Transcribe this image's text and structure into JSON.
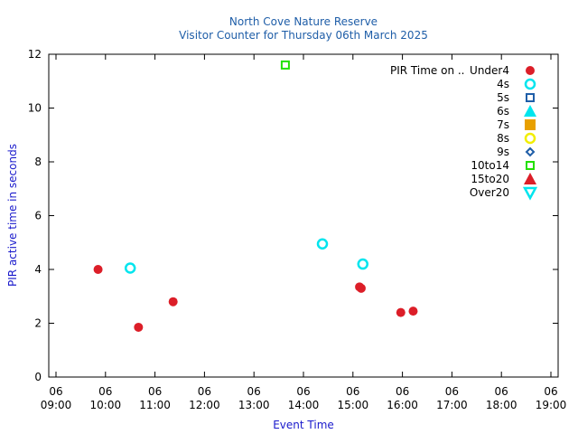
{
  "chart_data": {
    "type": "scatter",
    "title": "North Cove Nature Reserve",
    "subtitle": "Visitor Counter for Thursday 06th March 2025",
    "xlabel": "Event Time",
    "ylabel": "PIR active time in seconds",
    "xlim": [
      "09:00",
      "19:00"
    ],
    "ylim": [
      0,
      12
    ],
    "x_ticks": [
      {
        "day": "06",
        "time": "09:00"
      },
      {
        "day": "06",
        "time": "10:00"
      },
      {
        "day": "06",
        "time": "11:00"
      },
      {
        "day": "06",
        "time": "12:00"
      },
      {
        "day": "06",
        "time": "13:00"
      },
      {
        "day": "06",
        "time": "14:00"
      },
      {
        "day": "06",
        "time": "15:00"
      },
      {
        "day": "06",
        "time": "16:00"
      },
      {
        "day": "06",
        "time": "17:00"
      },
      {
        "day": "06",
        "time": "18:00"
      },
      {
        "day": "06",
        "time": "19:00"
      }
    ],
    "y_ticks": [
      "0",
      "2",
      "4",
      "6",
      "8",
      "10",
      "12"
    ],
    "grid": false,
    "legend_position": "top-right",
    "legend_title": "PIR Time on ..",
    "series": [
      {
        "name": "Under4",
        "marker": "filled-circle",
        "color": "#dc1e28",
        "points": [
          {
            "x": "09:51",
            "y": 4.0
          },
          {
            "x": "10:40",
            "y": 1.85
          },
          {
            "x": "11:22",
            "y": 2.8
          },
          {
            "x": "15:08",
            "y": 3.35
          },
          {
            "x": "15:10",
            "y": 3.3
          },
          {
            "x": "15:58",
            "y": 2.4
          },
          {
            "x": "16:13",
            "y": 2.45
          }
        ]
      },
      {
        "name": "4s",
        "marker": "open-circle",
        "color": "#00e5ee",
        "points": [
          {
            "x": "10:30",
            "y": 4.05
          },
          {
            "x": "14:23",
            "y": 4.95
          },
          {
            "x": "15:12",
            "y": 4.2
          }
        ]
      },
      {
        "name": "5s",
        "marker": "open-square",
        "color": "#1f5ea8",
        "points": []
      },
      {
        "name": "6s",
        "marker": "filled-triangle-up",
        "color": "#00e5ee",
        "points": []
      },
      {
        "name": "7s",
        "marker": "filled-square",
        "color": "#e8a000",
        "points": []
      },
      {
        "name": "8s",
        "marker": "open-circle",
        "color": "#f2ee00",
        "points": []
      },
      {
        "name": "9s",
        "marker": "open-diamond",
        "color": "#1f5ea8",
        "points": []
      },
      {
        "name": "10to14",
        "marker": "open-square",
        "color": "#22e000",
        "points": [
          {
            "x": "13:38",
            "y": 11.6
          }
        ]
      },
      {
        "name": "15to20",
        "marker": "filled-triangle-up",
        "color": "#dc1e28",
        "points": []
      },
      {
        "name": "Over20",
        "marker": "open-triangle-down",
        "color": "#00e5ee",
        "points": []
      }
    ]
  }
}
